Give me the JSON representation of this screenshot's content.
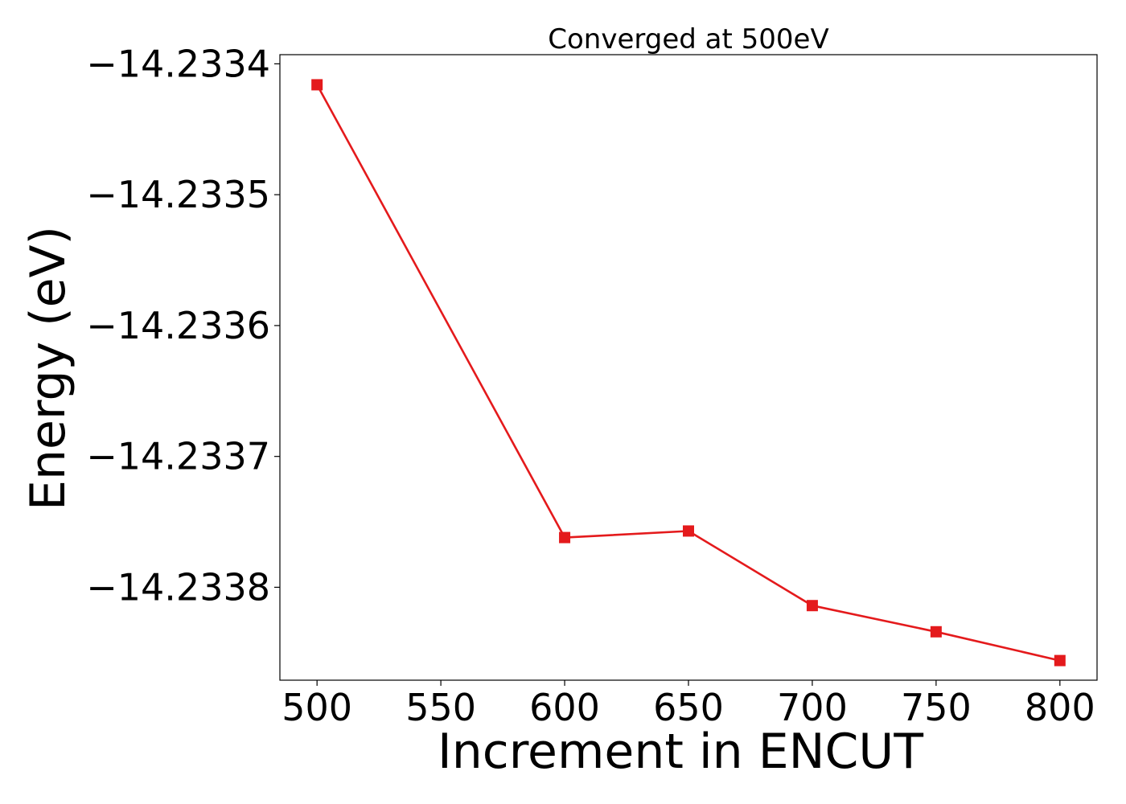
{
  "chart_data": {
    "type": "line",
    "title": "Converged at 500eV",
    "xlabel": "Increment in ENCUT",
    "ylabel": "Energy (eV)",
    "x": [
      500,
      600,
      650,
      700,
      750,
      800
    ],
    "series": [
      {
        "values": [
          -14.233416,
          -14.233762,
          -14.233757,
          -14.233814,
          -14.233834,
          -14.233856
        ],
        "color": "#e41a1c",
        "marker": "square"
      }
    ],
    "xticks": [
      500,
      550,
      600,
      650,
      700,
      750,
      800
    ],
    "xtick_labels": [
      "500",
      "550",
      "600",
      "650",
      "700",
      "750",
      "800"
    ],
    "yticks": [
      -14.2334,
      -14.2335,
      -14.2336,
      -14.2337,
      -14.2338
    ],
    "ytick_labels": [
      "−14.2334",
      "−14.2335",
      "−14.2336",
      "−14.2337",
      "−14.2338"
    ],
    "xlim": [
      485,
      815
    ],
    "ylim": [
      -14.233871,
      -14.233393
    ],
    "grid": false,
    "legend": false
  }
}
